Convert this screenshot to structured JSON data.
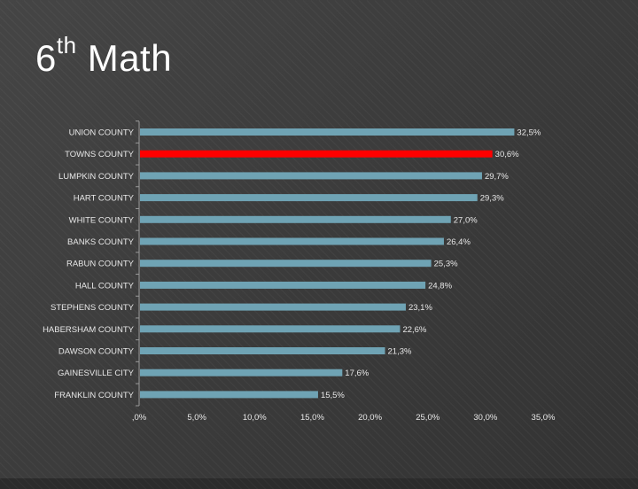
{
  "slide": {
    "title_main": "6",
    "title_sup": "th",
    "title_rest": " Math"
  },
  "colors": {
    "background": "#3c3c3c",
    "bar": "#6fa3b4",
    "highlight": "#ff0000",
    "axis": "#9a9a9a",
    "text": "#e8e8e8"
  },
  "chart_data": {
    "type": "bar",
    "orientation": "horizontal",
    "categories": [
      "UNION COUNTY",
      "TOWNS COUNTY",
      "LUMPKIN COUNTY",
      "HART COUNTY",
      "WHITE COUNTY",
      "BANKS COUNTY",
      "RABUN COUNTY",
      "HALL COUNTY",
      "STEPHENS COUNTY",
      "HABERSHAM COUNTY",
      "DAWSON COUNTY",
      "GAINESVILLE CITY",
      "FRANKLIN COUNTY"
    ],
    "values": [
      32.5,
      30.6,
      29.7,
      29.3,
      27.0,
      26.4,
      25.3,
      24.8,
      23.1,
      22.6,
      21.3,
      17.6,
      15.5
    ],
    "value_labels": [
      "32,5%",
      "30,6%",
      "29,7%",
      "29,3%",
      "27,0%",
      "26,4%",
      "25,3%",
      "24,8%",
      "23,1%",
      "22,6%",
      "21,3%",
      "17,6%",
      "15,5%"
    ],
    "highlight_index": 1,
    "xlim": [
      0,
      35
    ],
    "x_ticks": [
      0,
      5,
      10,
      15,
      20,
      25,
      30,
      35
    ],
    "x_tick_labels": [
      ",0%",
      "5,0%",
      "10,0%",
      "15,0%",
      "20,0%",
      "25,0%",
      "30,0%",
      "35,0%"
    ],
    "grid": false,
    "legend": "none"
  }
}
